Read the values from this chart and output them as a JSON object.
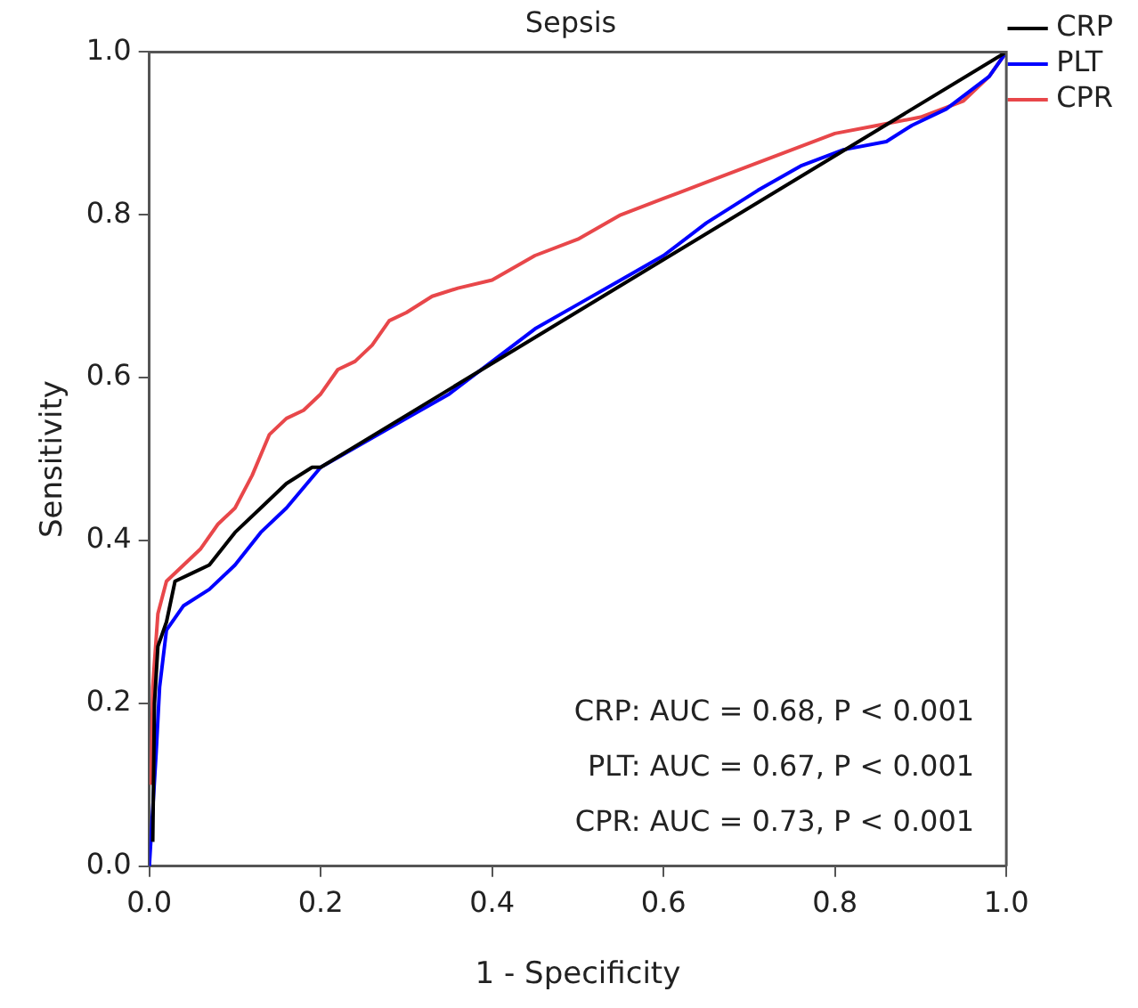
{
  "chart_data": {
    "type": "line",
    "title": "Sepsis",
    "xlabel": "1 - Specificity",
    "ylabel": "Sensitivity",
    "xlim": [
      0,
      1
    ],
    "ylim": [
      0,
      1
    ],
    "xticks": [
      {
        "value": 0,
        "label": "0.0"
      },
      {
        "value": 0.2,
        "label": "0.2"
      },
      {
        "value": 0.4,
        "label": "0.4"
      },
      {
        "value": 0.6,
        "label": "0.6"
      },
      {
        "value": 0.8,
        "label": "0.8"
      },
      {
        "value": 1,
        "label": "1.0"
      }
    ],
    "yticks": [
      {
        "value": 0,
        "label": "0.0"
      },
      {
        "value": 0.2,
        "label": "0.2"
      },
      {
        "value": 0.4,
        "label": "0.4"
      },
      {
        "value": 0.6,
        "label": "0.6"
      },
      {
        "value": 0.8,
        "label": "0.8"
      },
      {
        "value": 1,
        "label": "1.0"
      }
    ],
    "grid": false,
    "legend": "top right",
    "marker": "none",
    "line_style": "solid",
    "series": [
      {
        "name": "CRP",
        "color": "#000000",
        "x": [
          0.004,
          0.006,
          0.01,
          0.02,
          0.03,
          0.05,
          0.07,
          0.1,
          0.13,
          0.16,
          0.19,
          0.2,
          1
        ],
        "values": [
          0.03,
          0.2,
          0.27,
          0.3,
          0.35,
          0.36,
          0.37,
          0.41,
          0.44,
          0.47,
          0.49,
          0.49,
          1
        ]
      },
      {
        "name": "PLT",
        "color": "#0000ff",
        "x": [
          0,
          0.008,
          0.012,
          0.02,
          0.04,
          0.07,
          0.1,
          0.13,
          0.16,
          0.2,
          0.25,
          0.3,
          0.35,
          0.4,
          0.45,
          0.5,
          0.55,
          0.6,
          0.65,
          0.71,
          0.76,
          0.81,
          0.86,
          0.89,
          0.93,
          0.98,
          1
        ],
        "values": [
          0,
          0.14,
          0.22,
          0.29,
          0.32,
          0.34,
          0.37,
          0.41,
          0.44,
          0.49,
          0.52,
          0.55,
          0.58,
          0.62,
          0.66,
          0.69,
          0.72,
          0.75,
          0.79,
          0.83,
          0.86,
          0.88,
          0.89,
          0.91,
          0.93,
          0.97,
          1
        ]
      },
      {
        "name": "CPR",
        "color": "#e8474a",
        "x": [
          0.002,
          0.004,
          0.01,
          0.02,
          0.04,
          0.06,
          0.08,
          0.1,
          0.12,
          0.14,
          0.16,
          0.18,
          0.2,
          0.22,
          0.24,
          0.26,
          0.28,
          0.3,
          0.33,
          0.36,
          0.4,
          0.45,
          0.5,
          0.55,
          0.6,
          0.65,
          0.7,
          0.75,
          0.8,
          0.85,
          0.9,
          0.95,
          0.98,
          1
        ],
        "values": [
          0.1,
          0.22,
          0.31,
          0.35,
          0.37,
          0.39,
          0.42,
          0.44,
          0.48,
          0.53,
          0.55,
          0.56,
          0.58,
          0.61,
          0.62,
          0.64,
          0.67,
          0.68,
          0.7,
          0.71,
          0.72,
          0.75,
          0.77,
          0.8,
          0.82,
          0.84,
          0.86,
          0.88,
          0.9,
          0.91,
          0.92,
          0.94,
          0.97,
          1
        ]
      }
    ],
    "annotations": [
      "CRP: AUC = 0.68, P < 0.001",
      "PLT: AUC = 0.67, P < 0.001",
      "CPR: AUC = 0.73, P < 0.001"
    ]
  }
}
